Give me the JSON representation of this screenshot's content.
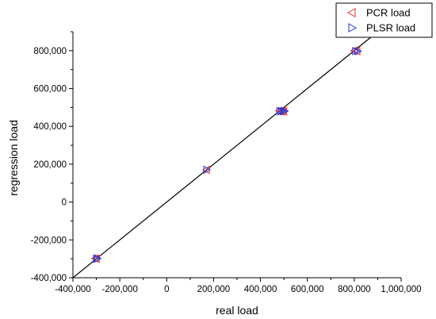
{
  "chart_data": {
    "type": "scatter",
    "xlabel": "real load",
    "ylabel": "regression load",
    "xlim": [
      -400000,
      1000000
    ],
    "ylim": [
      -400000,
      900000
    ],
    "x_ticks": [
      "-400,000",
      "-200,000",
      "0",
      "200,000",
      "400,000",
      "600,000",
      "800,000",
      "1,000,000"
    ],
    "x_tick_values": [
      -400000,
      -200000,
      0,
      200000,
      400000,
      600000,
      800000,
      1000000
    ],
    "y_ticks": [
      "-400,000",
      "-200,000",
      "0",
      "200,000",
      "400,000",
      "600,000",
      "800,000"
    ],
    "y_tick_values": [
      -400000,
      -200000,
      0,
      200000,
      400000,
      600000,
      800000
    ],
    "reference_line": {
      "x": [
        -400000,
        1000000
      ],
      "y": [
        -400000,
        1000000
      ],
      "color": "#000000"
    },
    "legend_position": "top-right",
    "series": [
      {
        "name": "PCR load",
        "marker": "triangle-left",
        "color": "#e8302a",
        "points": [
          [
            -305000,
            -298000
          ],
          [
            -300000,
            -300000
          ],
          [
            170000,
            170000
          ],
          [
            480000,
            482000
          ],
          [
            488000,
            478000
          ],
          [
            495000,
            481000
          ],
          [
            500000,
            478000
          ],
          [
            800000,
            800000
          ],
          [
            812000,
            797000
          ]
        ]
      },
      {
        "name": "PLSR load",
        "marker": "triangle-right",
        "color": "#2a35d6",
        "points": [
          [
            -300000,
            -300000
          ],
          [
            -295000,
            -298000
          ],
          [
            170000,
            171000
          ],
          [
            482000,
            480000
          ],
          [
            490000,
            481000
          ],
          [
            497000,
            479000
          ],
          [
            503000,
            481000
          ],
          [
            805000,
            798000
          ],
          [
            815000,
            797000
          ]
        ]
      }
    ]
  }
}
